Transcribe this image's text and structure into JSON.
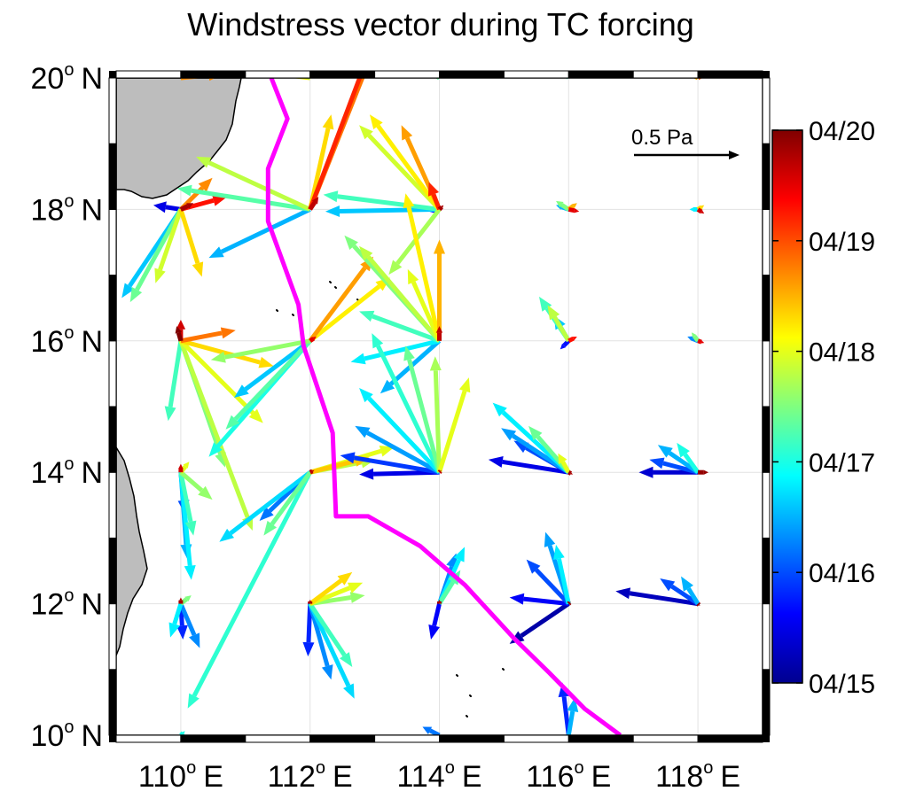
{
  "chart_data": {
    "type": "vector-field",
    "title": "Windstress vector during TC forcing",
    "x_axis": {
      "range": [
        109,
        119
      ],
      "ticks": [
        {
          "value": 110,
          "deg": "110",
          "sup": "o",
          "hemi": "E"
        },
        {
          "value": 112,
          "deg": "112",
          "sup": "o",
          "hemi": "E"
        },
        {
          "value": 114,
          "deg": "114",
          "sup": "o",
          "hemi": "E"
        },
        {
          "value": 116,
          "deg": "116",
          "sup": "o",
          "hemi": "E"
        },
        {
          "value": 118,
          "deg": "118",
          "sup": "o",
          "hemi": "E"
        }
      ]
    },
    "y_axis": {
      "range": [
        10,
        20
      ],
      "ticks": [
        {
          "value": 20,
          "deg": "20",
          "sup": "o",
          "hemi": "N"
        },
        {
          "value": 18,
          "deg": "18",
          "sup": "o",
          "hemi": "N"
        },
        {
          "value": 16,
          "deg": "16",
          "sup": "o",
          "hemi": "N"
        },
        {
          "value": 14,
          "deg": "14",
          "sup": "o",
          "hemi": "N"
        },
        {
          "value": 12,
          "deg": "12",
          "sup": "o",
          "hemi": "N"
        },
        {
          "value": 10,
          "deg": "10",
          "sup": "o",
          "hemi": "N"
        }
      ]
    },
    "grid": true,
    "scale_arrow": {
      "label": "0.5 Pa",
      "value_pa": 0.5
    },
    "colorbar": {
      "colormap": "jet",
      "placement": "right",
      "min": 0,
      "max": 5,
      "ticks": [
        {
          "value": 5,
          "label": "04/20"
        },
        {
          "value": 4,
          "label": "04/19"
        },
        {
          "value": 3,
          "label": "04/18"
        },
        {
          "value": 2,
          "label": "04/17"
        },
        {
          "value": 1,
          "label": "04/16"
        },
        {
          "value": 0,
          "label": "04/15"
        }
      ]
    },
    "tc_track": {
      "color": "#ff00ff",
      "points": [
        [
          111.4,
          20.0
        ],
        [
          111.65,
          19.38
        ],
        [
          111.35,
          18.62
        ],
        [
          111.35,
          17.82
        ],
        [
          111.82,
          16.55
        ],
        [
          111.9,
          15.92
        ],
        [
          112.35,
          14.6
        ],
        [
          112.4,
          13.33
        ],
        [
          112.9,
          13.33
        ],
        [
          113.7,
          12.88
        ],
        [
          114.4,
          12.28
        ],
        [
          115.15,
          11.48
        ],
        [
          115.7,
          10.95
        ],
        [
          116.25,
          10.4
        ],
        [
          116.8,
          10.0
        ]
      ]
    },
    "vector_sites": [
      {
        "lon": 110,
        "lat": 18,
        "vectors": [
          {
            "t": 0.5,
            "u": -0.13,
            "v": 0.02
          },
          {
            "t": 1.6,
            "u": -0.28,
            "v": -0.42
          },
          {
            "t": 2.4,
            "u": -0.24,
            "v": -0.44
          },
          {
            "t": 2.9,
            "u": -0.12,
            "v": -0.35
          },
          {
            "t": 3.3,
            "u": 0.1,
            "v": -0.32
          },
          {
            "t": 3.7,
            "u": 0.15,
            "v": 0.15
          },
          {
            "t": 4.3,
            "u": 0.22,
            "v": 0.06
          },
          {
            "t": 4.8,
            "u": 0.06,
            "v": 0.03
          }
        ]
      },
      {
        "lon": 112,
        "lat": 18,
        "vectors": [
          {
            "t": 1.5,
            "u": -0.48,
            "v": -0.23
          },
          {
            "t": 2.3,
            "u": -0.63,
            "v": 0.1
          },
          {
            "t": 2.8,
            "u": -0.54,
            "v": 0.25
          },
          {
            "t": 3.3,
            "u": 0.1,
            "v": 0.45
          },
          {
            "t": 3.8,
            "u": 0.29,
            "v": 0.73
          },
          {
            "t": 4.2,
            "u": 0.32,
            "v": 0.85
          },
          {
            "t": 4.7,
            "u": 0.04,
            "v": 0.06
          }
        ]
      },
      {
        "lon": 114,
        "lat": 18,
        "vectors": [
          {
            "t": 0.7,
            "u": -0.05,
            "v": -0.01
          },
          {
            "t": 1.6,
            "u": -0.54,
            "v": -0.01
          },
          {
            "t": 2.2,
            "u": -0.55,
            "v": 0.07
          },
          {
            "t": 2.7,
            "u": -0.24,
            "v": -0.31
          },
          {
            "t": 2.9,
            "u": -0.38,
            "v": 0.4
          },
          {
            "t": 3.2,
            "u": -0.33,
            "v": 0.45
          },
          {
            "t": 3.6,
            "u": -0.18,
            "v": 0.4
          },
          {
            "t": 4.2,
            "u": -0.05,
            "v": 0.13
          },
          {
            "t": 4.8,
            "u": 0.02,
            "v": 0.02
          }
        ]
      },
      {
        "lon": 116,
        "lat": 18,
        "vectors": [
          {
            "t": 1.5,
            "u": -0.06,
            "v": 0.02
          },
          {
            "t": 2.5,
            "u": -0.06,
            "v": 0.04
          },
          {
            "t": 3.5,
            "u": 0.04,
            "v": 0.03
          },
          {
            "t": 4.5,
            "u": 0.05,
            "v": -0.01
          }
        ]
      },
      {
        "lon": 118,
        "lat": 18,
        "vectors": [
          {
            "t": 1.8,
            "u": -0.04,
            "v": 0.0
          },
          {
            "t": 3.3,
            "u": 0.03,
            "v": 0.02
          },
          {
            "t": 4.6,
            "u": 0.03,
            "v": -0.02
          }
        ]
      },
      {
        "lon": 110,
        "lat": 16,
        "vectors": [
          {
            "t": 2.2,
            "u": -0.06,
            "v": -0.38
          },
          {
            "t": 2.5,
            "u": 0.21,
            "v": -0.6
          },
          {
            "t": 2.8,
            "u": 0.34,
            "v": -0.9
          },
          {
            "t": 3.0,
            "u": 0.39,
            "v": -0.39
          },
          {
            "t": 3.3,
            "u": 0.44,
            "v": -0.12
          },
          {
            "t": 3.8,
            "u": 0.26,
            "v": 0.05
          },
          {
            "t": 4.6,
            "u": 0.0,
            "v": 0.1
          },
          {
            "t": 5.0,
            "u": -0.02,
            "v": 0.07
          }
        ]
      },
      {
        "lon": 112,
        "lat": 16,
        "vectors": [
          {
            "t": 1.6,
            "u": -0.36,
            "v": -0.27
          },
          {
            "t": 2.0,
            "u": -0.48,
            "v": -0.55
          },
          {
            "t": 2.3,
            "u": -0.4,
            "v": -0.42
          },
          {
            "t": 2.6,
            "u": -0.47,
            "v": -0.09
          },
          {
            "t": 3.2,
            "u": 0.38,
            "v": 0.3
          },
          {
            "t": 3.6,
            "u": 0.3,
            "v": 0.4
          },
          {
            "t": 4.5,
            "u": 0.03,
            "v": 0.02
          }
        ]
      },
      {
        "lon": 114,
        "lat": 16,
        "vectors": [
          {
            "t": 1.5,
            "u": -0.28,
            "v": -0.25
          },
          {
            "t": 1.8,
            "u": -0.42,
            "v": -0.1
          },
          {
            "t": 2.2,
            "u": -0.38,
            "v": 0.14
          },
          {
            "t": 2.5,
            "u": -0.45,
            "v": 0.5
          },
          {
            "t": 2.8,
            "u": -0.38,
            "v": 0.45
          },
          {
            "t": 3.0,
            "u": -0.15,
            "v": 0.34
          },
          {
            "t": 3.2,
            "u": -0.16,
            "v": 0.7
          },
          {
            "t": 3.5,
            "u": 0.0,
            "v": 0.48
          },
          {
            "t": 4.7,
            "u": 0.0,
            "v": 0.07
          }
        ]
      },
      {
        "lon": 116,
        "lat": 16,
        "vectors": [
          {
            "t": 0.7,
            "u": -0.04,
            "v": -0.04
          },
          {
            "t": 1.6,
            "u": -0.07,
            "v": 0.12
          },
          {
            "t": 2.2,
            "u": -0.14,
            "v": 0.21
          },
          {
            "t": 2.8,
            "u": -0.1,
            "v": 0.17
          },
          {
            "t": 4.3,
            "u": 0.04,
            "v": 0.02
          }
        ]
      },
      {
        "lon": 118,
        "lat": 16,
        "vectors": [
          {
            "t": 1.3,
            "u": -0.05,
            "v": 0.02
          },
          {
            "t": 2.5,
            "u": -0.03,
            "v": 0.04
          },
          {
            "t": 4.5,
            "u": 0.03,
            "v": -0.01
          }
        ]
      },
      {
        "lon": 110,
        "lat": 14,
        "vectors": [
          {
            "t": 1.0,
            "u": 0.02,
            "v": -0.2
          },
          {
            "t": 1.5,
            "u": 0.03,
            "v": -0.41
          },
          {
            "t": 1.8,
            "u": 0.05,
            "v": -0.51
          },
          {
            "t": 2.2,
            "u": 0.06,
            "v": -0.3
          },
          {
            "t": 2.6,
            "u": 0.15,
            "v": -0.13
          },
          {
            "t": 3.0,
            "u": 0.04,
            "v": 0.05
          },
          {
            "t": 4.6,
            "u": 0.0,
            "v": 0.04
          }
        ]
      },
      {
        "lon": 112,
        "lat": 14,
        "vectors": [
          {
            "t": 1.2,
            "u": -0.24,
            "v": -0.23
          },
          {
            "t": 1.7,
            "u": -0.43,
            "v": -0.33
          },
          {
            "t": 2.1,
            "u": -0.58,
            "v": -1.12
          },
          {
            "t": 2.4,
            "u": -0.22,
            "v": -0.3
          },
          {
            "t": 2.8,
            "u": 0.31,
            "v": 0.06
          },
          {
            "t": 3.0,
            "u": 0.4,
            "v": 0.12
          },
          {
            "t": 3.4,
            "u": 0.28,
            "v": 0.07
          },
          {
            "t": 4.7,
            "u": 0.02,
            "v": 0.01
          }
        ]
      },
      {
        "lon": 114,
        "lat": 14,
        "vectors": [
          {
            "t": 0.5,
            "u": -0.38,
            "v": -0.01
          },
          {
            "t": 0.9,
            "u": -0.47,
            "v": 0.08
          },
          {
            "t": 1.4,
            "u": -0.4,
            "v": 0.22
          },
          {
            "t": 1.8,
            "u": -0.38,
            "v": 0.4
          },
          {
            "t": 2.1,
            "u": -0.32,
            "v": 0.66
          },
          {
            "t": 2.4,
            "u": -0.16,
            "v": 0.6
          },
          {
            "t": 2.7,
            "u": -0.02,
            "v": 0.55
          },
          {
            "t": 3.0,
            "u": 0.14,
            "v": 0.45
          },
          {
            "t": 4.7,
            "u": 0.01,
            "v": 0.01
          }
        ]
      },
      {
        "lon": 116,
        "lat": 14,
        "vectors": [
          {
            "t": 0.5,
            "u": -0.38,
            "v": 0.06
          },
          {
            "t": 1.0,
            "u": -0.26,
            "v": 0.15
          },
          {
            "t": 1.4,
            "u": -0.32,
            "v": 0.21
          },
          {
            "t": 1.8,
            "u": -0.36,
            "v": 0.33
          },
          {
            "t": 2.4,
            "u": -0.19,
            "v": 0.22
          },
          {
            "t": 3.0,
            "u": -0.05,
            "v": 0.09
          },
          {
            "t": 4.8,
            "u": 0.02,
            "v": -0.01
          }
        ]
      },
      {
        "lon": 118,
        "lat": 14,
        "vectors": [
          {
            "t": 0.4,
            "u": -0.28,
            "v": 0.0
          },
          {
            "t": 1.0,
            "u": -0.23,
            "v": 0.06
          },
          {
            "t": 1.5,
            "u": -0.19,
            "v": 0.13
          },
          {
            "t": 2.0,
            "u": -0.1,
            "v": 0.14
          },
          {
            "t": 4.9,
            "u": 0.05,
            "v": 0.0
          }
        ]
      },
      {
        "lon": 110,
        "lat": 12,
        "vectors": [
          {
            "t": 0.8,
            "u": 0.01,
            "v": -0.17
          },
          {
            "t": 1.3,
            "u": 0.09,
            "v": -0.21
          },
          {
            "t": 1.8,
            "u": -0.05,
            "v": -0.16
          },
          {
            "t": 2.5,
            "u": 0.05,
            "v": 0.04
          },
          {
            "t": 4.8,
            "u": 0.0,
            "v": 0.03
          }
        ]
      },
      {
        "lon": 112,
        "lat": 12,
        "vectors": [
          {
            "t": 0.8,
            "u": -0.01,
            "v": -0.25
          },
          {
            "t": 1.3,
            "u": 0.1,
            "v": -0.36
          },
          {
            "t": 1.7,
            "u": 0.21,
            "v": -0.45
          },
          {
            "t": 2.2,
            "u": 0.2,
            "v": -0.3
          },
          {
            "t": 2.6,
            "u": 0.26,
            "v": 0.04
          },
          {
            "t": 3.0,
            "u": 0.25,
            "v": 0.1
          },
          {
            "t": 3.3,
            "u": 0.2,
            "v": 0.15
          },
          {
            "t": 4.8,
            "u": 0.0,
            "v": 0.02
          }
        ]
      },
      {
        "lon": 114,
        "lat": 12,
        "vectors": [
          {
            "t": 0.6,
            "u": -0.04,
            "v": -0.17
          },
          {
            "t": 1.3,
            "u": 0.08,
            "v": 0.24
          },
          {
            "t": 1.8,
            "u": 0.12,
            "v": 0.27
          },
          {
            "t": 2.3,
            "u": 0.1,
            "v": 0.16
          },
          {
            "t": 4.8,
            "u": 0.0,
            "v": 0.02
          }
        ]
      },
      {
        "lon": 116,
        "lat": 12,
        "vectors": [
          {
            "t": 0.2,
            "u": -0.28,
            "v": -0.19
          },
          {
            "t": 0.6,
            "u": -0.28,
            "v": 0.03
          },
          {
            "t": 1.0,
            "u": -0.2,
            "v": 0.21
          },
          {
            "t": 1.4,
            "u": -0.11,
            "v": 0.34
          },
          {
            "t": 1.8,
            "u": -0.06,
            "v": 0.28
          },
          {
            "t": 4.9,
            "u": 0.01,
            "v": 0.01
          }
        ]
      },
      {
        "lon": 118,
        "lat": 12,
        "vectors": [
          {
            "t": 0.3,
            "u": -0.39,
            "v": 0.06
          },
          {
            "t": 1.0,
            "u": -0.18,
            "v": 0.12
          },
          {
            "t": 1.5,
            "u": -0.08,
            "v": 0.13
          },
          {
            "t": 4.9,
            "u": 0.01,
            "v": -0.01
          }
        ]
      },
      {
        "lon": 110,
        "lat": 20,
        "vectors": [
          {
            "t": 3.2,
            "u": 0.25,
            "v": 0.05
          },
          {
            "t": 3.7,
            "u": 0.2,
            "v": 0.02
          }
        ]
      },
      {
        "lon": 112,
        "lat": 20,
        "vectors": [
          {
            "t": 3.1,
            "u": -0.25,
            "v": 0.03
          },
          {
            "t": 2.8,
            "u": -0.12,
            "v": 0.05
          }
        ]
      },
      {
        "lon": 114,
        "lat": 20,
        "vectors": [
          {
            "t": 2.3,
            "u": -0.15,
            "v": 0.1
          },
          {
            "t": 2.7,
            "u": -0.05,
            "v": 0.1
          }
        ]
      },
      {
        "lon": 116,
        "lat": 20,
        "vectors": [
          {
            "t": 2.0,
            "u": -0.05,
            "v": 0.08
          },
          {
            "t": 3.0,
            "u": -0.03,
            "v": 0.1
          }
        ]
      },
      {
        "lon": 118,
        "lat": 20,
        "vectors": [
          {
            "t": 3.5,
            "u": -0.1,
            "v": 0.05
          },
          {
            "t": 4.0,
            "u": 0.05,
            "v": 0.03
          }
        ]
      },
      {
        "lon": 116,
        "lat": 10,
        "vectors": [
          {
            "t": 0.8,
            "u": -0.03,
            "v": 0.25
          },
          {
            "t": 1.5,
            "u": 0.03,
            "v": 0.18
          }
        ]
      },
      {
        "lon": 114,
        "lat": 10,
        "vectors": [
          {
            "t": 1.2,
            "u": -0.08,
            "v": 0.04
          }
        ]
      },
      {
        "lon": 110,
        "lat": 10,
        "vectors": [
          {
            "t": 2.0,
            "u": 0.02,
            "v": 0.02
          }
        ]
      }
    ]
  }
}
